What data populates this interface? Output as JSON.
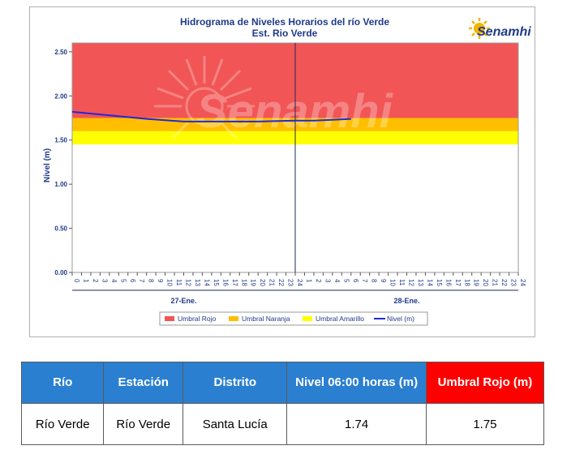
{
  "chart_data": {
    "type": "line",
    "title": "Hidrograma de Niveles Horarios del río Verde",
    "subtitle": "Est. Rio Verde",
    "ylabel": "Nivel (m)",
    "xlabel": "",
    "ylim": [
      0,
      2.6
    ],
    "yticks": [
      "0.00",
      "0.50",
      "1.00",
      "1.50",
      "2.00",
      "2.50"
    ],
    "x_hours": [
      0,
      1,
      2,
      3,
      4,
      5,
      6,
      7,
      8,
      9,
      10,
      11,
      12,
      13,
      14,
      15,
      16,
      17,
      18,
      19,
      20,
      21,
      22,
      23,
      24,
      25,
      26,
      27,
      28,
      29,
      30,
      31,
      32,
      33,
      34,
      35,
      36,
      37,
      38,
      39,
      40,
      41,
      42,
      43,
      44,
      45,
      46,
      47,
      48
    ],
    "x_tick_labels": [
      "0",
      "1",
      "2",
      "3",
      "4",
      "5",
      "6",
      "7",
      "8",
      "9",
      "10",
      "11",
      "12",
      "13",
      "14",
      "15",
      "16",
      "17",
      "18",
      "19",
      "20",
      "21",
      "22",
      "23",
      "24",
      "1",
      "2",
      "3",
      "4",
      "5",
      "6",
      "7",
      "8",
      "9",
      "10",
      "11",
      "12",
      "13",
      "14",
      "15",
      "16",
      "17",
      "18",
      "19",
      "20",
      "21",
      "22",
      "23",
      "24"
    ],
    "day_labels": [
      "27-Ene.",
      "28-Ene."
    ],
    "day_divider_hour": 24,
    "bands": [
      {
        "name": "Umbral Rojo",
        "from": 1.75,
        "to": 2.6,
        "color": "#f25555"
      },
      {
        "name": "Umbral Naranja",
        "from": 1.6,
        "to": 1.75,
        "color": "#ffbf00"
      },
      {
        "name": "Umbral Amarillo",
        "from": 1.45,
        "to": 1.6,
        "color": "#ffff00"
      }
    ],
    "series": [
      {
        "name": "Nivel (m)",
        "color": "#1f2ad6",
        "x": [
          0,
          4,
          8,
          12,
          16,
          20,
          24,
          26,
          28,
          30
        ],
        "y": [
          1.82,
          1.78,
          1.74,
          1.71,
          1.71,
          1.71,
          1.72,
          1.72,
          1.73,
          1.74
        ]
      }
    ],
    "legend": [
      "Umbral Rojo",
      "Umbral Naranja",
      "Umbral Amarillo",
      "Nivel (m)"
    ],
    "legend_position": "bottom",
    "grid": false
  },
  "logo": {
    "text": "Senamhi",
    "watermark": "Senamhi"
  },
  "table": {
    "headers": [
      {
        "text": "Río",
        "style": "blue"
      },
      {
        "text": "Estación",
        "style": "blue"
      },
      {
        "text": "Distrito",
        "style": "blue"
      },
      {
        "text": "Nivel  06:00 horas (m)",
        "style": "blue"
      },
      {
        "text": "Umbral Rojo (m)",
        "style": "red"
      }
    ],
    "row": [
      "Río Verde",
      "Río Verde",
      "Santa Lucía",
      "1.74",
      "1.75"
    ]
  }
}
